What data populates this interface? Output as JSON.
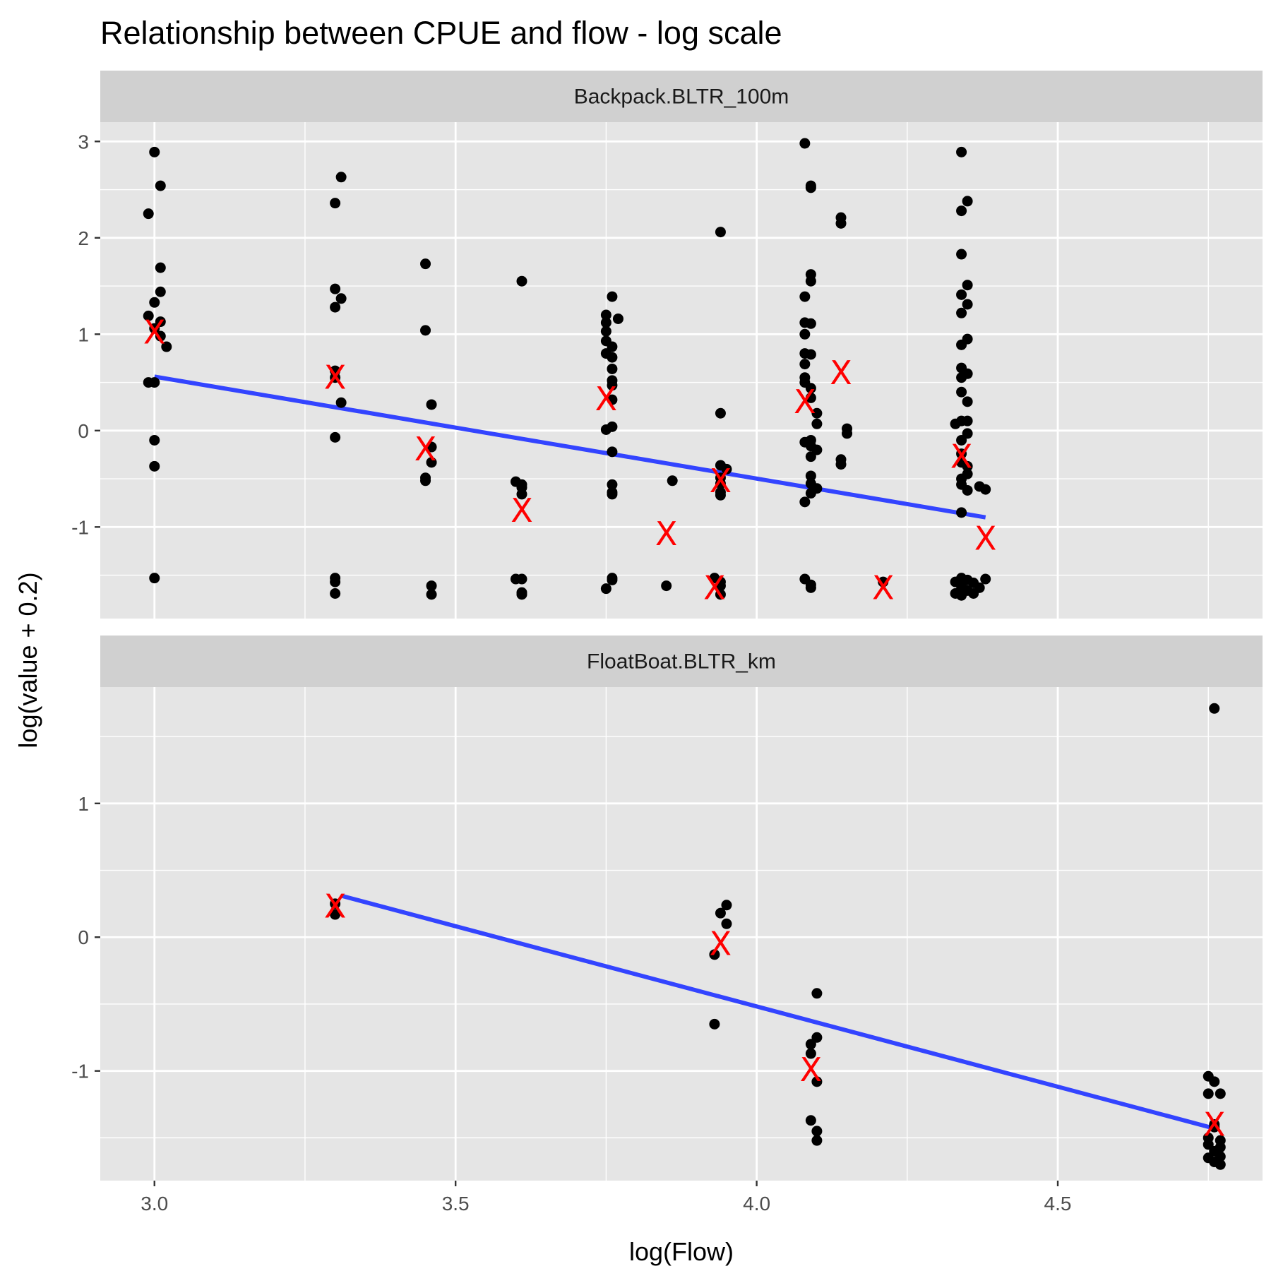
{
  "chart_data": {
    "type": "scatter",
    "title": "Relationship between CPUE and flow - log scale",
    "xlabel": "log(Flow)",
    "ylabel": "log(value + 0.2)",
    "xlim": [
      2.91,
      4.84
    ],
    "x_ticks": [
      "3.0",
      "3.5",
      "4.0",
      "4.5"
    ],
    "x_tick_values": [
      3.0,
      3.5,
      4.0,
      4.5
    ],
    "grid": true,
    "point_color": "#000000",
    "mean_marker": "X",
    "mean_color": "#ff0000",
    "fit_color": "#3344ff",
    "panel_background": "#e5e5e5",
    "strip_background": "#d0d0d0",
    "panels": [
      {
        "strip": "Backpack.BLTR_100m",
        "ylim": [
          -1.95,
          3.2
        ],
        "y_ticks": [
          "-1",
          "0",
          "1",
          "2",
          "3"
        ],
        "y_tick_values": [
          -1,
          0,
          1,
          2,
          3
        ],
        "points": [
          [
            3.0,
            2.89
          ],
          [
            3.01,
            2.54
          ],
          [
            2.99,
            2.25
          ],
          [
            3.01,
            1.69
          ],
          [
            3.01,
            1.44
          ],
          [
            3.0,
            1.33
          ],
          [
            2.99,
            1.19
          ],
          [
            3.01,
            1.13
          ],
          [
            3.0,
            1.06
          ],
          [
            3.01,
            0.98
          ],
          [
            3.02,
            0.87
          ],
          [
            2.99,
            0.5
          ],
          [
            3.0,
            0.5
          ],
          [
            3.0,
            -0.1
          ],
          [
            3.0,
            -0.37
          ],
          [
            3.0,
            -1.53
          ],
          [
            3.31,
            2.63
          ],
          [
            3.3,
            2.36
          ],
          [
            3.3,
            1.47
          ],
          [
            3.31,
            1.37
          ],
          [
            3.3,
            1.28
          ],
          [
            3.3,
            0.62
          ],
          [
            3.3,
            0.55
          ],
          [
            3.31,
            0.29
          ],
          [
            3.3,
            -0.07
          ],
          [
            3.3,
            -1.53
          ],
          [
            3.3,
            -1.57
          ],
          [
            3.3,
            -1.69
          ],
          [
            3.45,
            1.73
          ],
          [
            3.45,
            1.04
          ],
          [
            3.46,
            0.27
          ],
          [
            3.46,
            -0.17
          ],
          [
            3.46,
            -0.33
          ],
          [
            3.45,
            -0.49
          ],
          [
            3.45,
            -0.52
          ],
          [
            3.46,
            -1.61
          ],
          [
            3.46,
            -1.7
          ],
          [
            3.61,
            1.55
          ],
          [
            3.6,
            -0.53
          ],
          [
            3.61,
            -0.56
          ],
          [
            3.61,
            -0.59
          ],
          [
            3.61,
            -0.66
          ],
          [
            3.6,
            -1.54
          ],
          [
            3.61,
            -1.54
          ],
          [
            3.61,
            -1.68
          ],
          [
            3.61,
            -1.7
          ],
          [
            3.76,
            1.39
          ],
          [
            3.75,
            1.2
          ],
          [
            3.77,
            1.16
          ],
          [
            3.75,
            1.12
          ],
          [
            3.75,
            1.03
          ],
          [
            3.75,
            0.93
          ],
          [
            3.76,
            0.87
          ],
          [
            3.75,
            0.8
          ],
          [
            3.76,
            0.76
          ],
          [
            3.76,
            0.64
          ],
          [
            3.76,
            0.52
          ],
          [
            3.76,
            0.47
          ],
          [
            3.76,
            0.32
          ],
          [
            3.76,
            0.04
          ],
          [
            3.75,
            0.01
          ],
          [
            3.76,
            -0.22
          ],
          [
            3.76,
            -0.56
          ],
          [
            3.76,
            -0.64
          ],
          [
            3.76,
            -0.66
          ],
          [
            3.76,
            -1.53
          ],
          [
            3.76,
            -1.55
          ],
          [
            3.75,
            -1.64
          ],
          [
            3.86,
            -0.52
          ],
          [
            3.85,
            -1.61
          ],
          [
            3.94,
            2.06
          ],
          [
            3.94,
            0.18
          ],
          [
            3.94,
            -0.36
          ],
          [
            3.95,
            -0.4
          ],
          [
            3.94,
            -0.49
          ],
          [
            3.94,
            -0.55
          ],
          [
            3.94,
            -0.64
          ],
          [
            3.94,
            -0.67
          ],
          [
            3.93,
            -1.53
          ],
          [
            3.94,
            -1.57
          ],
          [
            3.94,
            -1.61
          ],
          [
            3.94,
            -1.7
          ],
          [
            4.08,
            2.98
          ],
          [
            4.09,
            2.54
          ],
          [
            4.09,
            2.52
          ],
          [
            4.09,
            1.62
          ],
          [
            4.09,
            1.55
          ],
          [
            4.08,
            1.39
          ],
          [
            4.08,
            1.12
          ],
          [
            4.09,
            1.11
          ],
          [
            4.08,
            1.0
          ],
          [
            4.08,
            0.8
          ],
          [
            4.09,
            0.79
          ],
          [
            4.08,
            0.69
          ],
          [
            4.08,
            0.55
          ],
          [
            4.08,
            0.5
          ],
          [
            4.09,
            0.44
          ],
          [
            4.09,
            0.34
          ],
          [
            4.1,
            0.18
          ],
          [
            4.1,
            0.07
          ],
          [
            4.08,
            -0.12
          ],
          [
            4.09,
            -0.1
          ],
          [
            4.09,
            -0.16
          ],
          [
            4.1,
            -0.2
          ],
          [
            4.09,
            -0.27
          ],
          [
            4.09,
            -0.47
          ],
          [
            4.09,
            -0.55
          ],
          [
            4.1,
            -0.6
          ],
          [
            4.09,
            -0.65
          ],
          [
            4.08,
            -0.74
          ],
          [
            4.08,
            -1.54
          ],
          [
            4.09,
            -1.6
          ],
          [
            4.09,
            -1.63
          ],
          [
            4.14,
            2.21
          ],
          [
            4.14,
            2.15
          ],
          [
            4.15,
            0.02
          ],
          [
            4.15,
            -0.03
          ],
          [
            4.14,
            -0.3
          ],
          [
            4.14,
            -0.35
          ],
          [
            4.21,
            -1.57
          ],
          [
            4.34,
            2.89
          ],
          [
            4.35,
            2.38
          ],
          [
            4.34,
            2.28
          ],
          [
            4.34,
            1.83
          ],
          [
            4.35,
            1.51
          ],
          [
            4.34,
            1.41
          ],
          [
            4.35,
            1.31
          ],
          [
            4.34,
            1.22
          ],
          [
            4.35,
            0.95
          ],
          [
            4.34,
            0.89
          ],
          [
            4.34,
            0.65
          ],
          [
            4.35,
            0.59
          ],
          [
            4.34,
            0.55
          ],
          [
            4.34,
            0.4
          ],
          [
            4.35,
            0.3
          ],
          [
            4.34,
            0.1
          ],
          [
            4.35,
            0.1
          ],
          [
            4.33,
            0.07
          ],
          [
            4.35,
            -0.03
          ],
          [
            4.34,
            -0.1
          ],
          [
            4.34,
            -0.24
          ],
          [
            4.34,
            -0.33
          ],
          [
            4.35,
            -0.37
          ],
          [
            4.35,
            -0.45
          ],
          [
            4.34,
            -0.5
          ],
          [
            4.34,
            -0.56
          ],
          [
            4.35,
            -0.62
          ],
          [
            4.34,
            -0.85
          ],
          [
            4.37,
            -0.58
          ],
          [
            4.38,
            -0.61
          ],
          [
            4.38,
            -1.54
          ],
          [
            4.34,
            -1.53
          ],
          [
            4.35,
            -1.55
          ],
          [
            4.33,
            -1.57
          ],
          [
            4.36,
            -1.58
          ],
          [
            4.34,
            -1.6
          ],
          [
            4.34,
            -1.64
          ],
          [
            4.35,
            -1.66
          ],
          [
            4.33,
            -1.69
          ],
          [
            4.34,
            -1.71
          ],
          [
            4.36,
            -1.69
          ],
          [
            4.37,
            -1.63
          ]
        ],
        "means": [
          [
            3.0,
            1.02
          ],
          [
            3.3,
            0.55
          ],
          [
            3.45,
            -0.19
          ],
          [
            3.61,
            -0.83
          ],
          [
            3.75,
            0.33
          ],
          [
            3.85,
            -1.07
          ],
          [
            3.94,
            -0.52
          ],
          [
            3.93,
            -1.63
          ],
          [
            4.08,
            0.3
          ],
          [
            4.14,
            0.6
          ],
          [
            4.21,
            -1.63
          ],
          [
            4.34,
            -0.27
          ],
          [
            4.38,
            -1.12
          ]
        ],
        "fit": [
          [
            3.0,
            0.56
          ],
          [
            4.38,
            -0.9
          ]
        ]
      },
      {
        "strip": "FloatBoat.BLTR_km",
        "ylim": [
          -1.82,
          1.87
        ],
        "y_ticks": [
          "-1",
          "0",
          "1"
        ],
        "y_tick_values": [
          -1,
          0,
          1
        ],
        "points": [
          [
            3.3,
            0.17
          ],
          [
            3.3,
            0.25
          ],
          [
            3.95,
            0.24
          ],
          [
            3.94,
            0.18
          ],
          [
            3.95,
            0.1
          ],
          [
            3.93,
            -0.13
          ],
          [
            3.93,
            -0.65
          ],
          [
            4.1,
            -0.42
          ],
          [
            4.1,
            -0.75
          ],
          [
            4.09,
            -0.8
          ],
          [
            4.09,
            -0.87
          ],
          [
            4.1,
            -1.08
          ],
          [
            4.09,
            -1.37
          ],
          [
            4.1,
            -1.45
          ],
          [
            4.1,
            -1.52
          ],
          [
            4.76,
            1.71
          ],
          [
            4.75,
            -1.04
          ],
          [
            4.76,
            -1.08
          ],
          [
            4.75,
            -1.17
          ],
          [
            4.77,
            -1.17
          ],
          [
            4.76,
            -1.4
          ],
          [
            4.76,
            -1.42
          ],
          [
            4.75,
            -1.5
          ],
          [
            4.75,
            -1.55
          ],
          [
            4.77,
            -1.52
          ],
          [
            4.76,
            -1.6
          ],
          [
            4.77,
            -1.57
          ],
          [
            4.75,
            -1.65
          ],
          [
            4.76,
            -1.68
          ],
          [
            4.77,
            -1.7
          ],
          [
            4.77,
            -1.64
          ]
        ],
        "means": [
          [
            3.3,
            0.23
          ],
          [
            3.94,
            -0.05
          ],
          [
            4.09,
            -0.99
          ],
          [
            4.76,
            -1.4
          ]
        ],
        "fit": [
          [
            3.31,
            0.31
          ],
          [
            4.76,
            -1.43
          ]
        ]
      }
    ]
  }
}
